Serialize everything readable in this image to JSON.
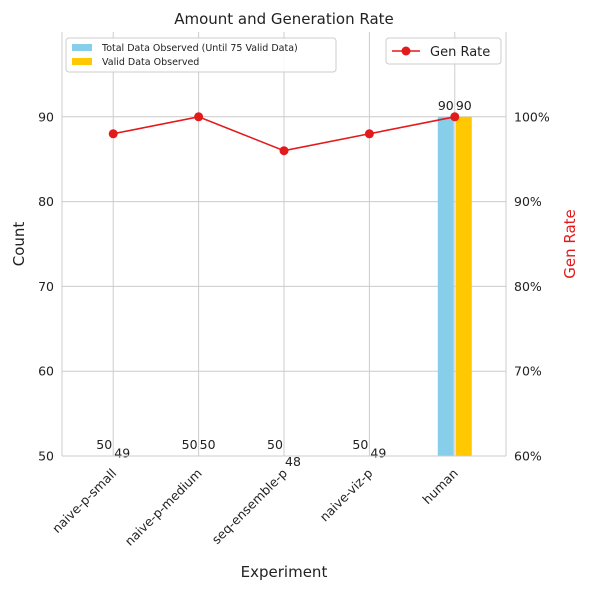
{
  "chart_data": {
    "type": "bar",
    "title": "Amount and Generation Rate",
    "xlabel": "Experiment",
    "ylabel": "Count",
    "y2label": "Gen Rate",
    "categories": [
      "naive-p-small",
      "naive-p-medium",
      "seq-ensemble-p",
      "naive-viz-p",
      "human"
    ],
    "ylim": [
      50,
      100
    ],
    "yticks": [
      50,
      60,
      70,
      80,
      90
    ],
    "y2lim": [
      60,
      110
    ],
    "y2ticks": [
      "60%",
      "70%",
      "80%",
      "90%",
      "100%"
    ],
    "y2tick_values": [
      60,
      70,
      80,
      90,
      100
    ],
    "grid": true,
    "series": [
      {
        "name": "Total Data Observed (Until 75 Valid Data)",
        "values": [
          50,
          50,
          50,
          50,
          90
        ],
        "color": "#87ceeb",
        "type": "bar"
      },
      {
        "name": "Valid Data Observed",
        "values": [
          49,
          50,
          48,
          49,
          90
        ],
        "color": "#ffc800",
        "type": "bar"
      },
      {
        "name": "Gen Rate",
        "values": [
          98,
          100,
          96,
          98,
          100
        ],
        "color": "#e31a1c",
        "type": "line",
        "axis": "right"
      }
    ],
    "bar_labels": {
      "total": [
        "50",
        "50",
        "50",
        "50",
        "90"
      ],
      "valid": [
        "49",
        "50",
        "48",
        "49",
        "90"
      ]
    },
    "legend_left_position": "upper-left",
    "legend_right_position": "upper-right"
  }
}
